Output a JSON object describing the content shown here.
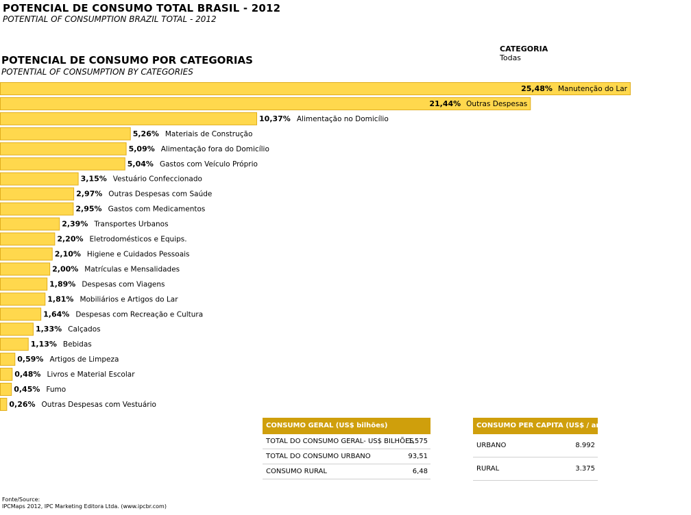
{
  "header": {
    "title": "POTENCIAL DE CONSUMO TOTAL BRASIL - 2012",
    "subtitle": "POTENTIAL OF CONSUMPTION BRAZIL TOTAL - 2012"
  },
  "filter": {
    "label": "CATEGORIA",
    "value": "Todas"
  },
  "chart_data": {
    "type": "bar",
    "orientation": "horizontal",
    "title": "POTENCIAL DE CONSUMO POR CATEGORIAS",
    "subtitle": "POTENTIAL OF CONSUMPTION BY CATEGORIES",
    "bar_color": "#ffd84d",
    "bar_border_color": "#e0ad1c",
    "max_value": 25.48,
    "categories": [
      "Manutenção do Lar",
      "Outras Despesas",
      "Alimentação no Domicílio",
      "Materiais de Construção",
      "Alimentação fora do Domicílio",
      "Gastos com Veículo Próprio",
      "Vestuário Confeccionado",
      "Outras Despesas com Saúde",
      "Gastos com Medicamentos",
      "Transportes Urbanos",
      "Eletrodomésticos e Equips.",
      "Higiene e Cuidados Pessoais",
      "Matrículas e Mensalidades",
      "Despesas com Viagens",
      "Mobiliários e Artigos do Lar",
      "Despesas com Recreação e Cultura",
      "Calçados",
      "Bebidas",
      "Artigos de Limpeza",
      "Livros e Material Escolar",
      "Fumo",
      "Outras Despesas com Vestuário"
    ],
    "values": [
      25.48,
      21.44,
      10.37,
      5.26,
      5.09,
      5.04,
      3.15,
      2.97,
      2.95,
      2.39,
      2.2,
      2.1,
      2.0,
      1.89,
      1.81,
      1.64,
      1.33,
      1.13,
      0.59,
      0.48,
      0.45,
      0.26
    ],
    "value_labels": [
      "25,48%",
      "21,44%",
      "10,37%",
      "5,26%",
      "5,09%",
      "5,04%",
      "3,15%",
      "2,97%",
      "2,95%",
      "2,39%",
      "2,20%",
      "2,10%",
      "2,00%",
      "1,89%",
      "1,81%",
      "1,64%",
      "1,33%",
      "1,13%",
      "0,59%",
      "0,48%",
      "0,45%",
      "0,26%"
    ]
  },
  "consumo_geral": {
    "header": "CONSUMO GERAL  (US$ bilhões)",
    "header_color": "#cf9f0c",
    "rows": [
      {
        "label": "TOTAL DO CONSUMO GERAL- US$ BILHÕES",
        "value": "1,575"
      },
      {
        "label": "TOTAL DO CONSUMO URBANO",
        "value": "93,51"
      },
      {
        "label": "CONSUMO RURAL",
        "value": "6,48"
      }
    ]
  },
  "consumo_per_capita": {
    "header": "CONSUMO PER CAPITA   (US$ / ano)",
    "rows": [
      {
        "label": "URBANO",
        "value": "8.992"
      },
      {
        "label": "RURAL",
        "value": "3.375"
      }
    ]
  },
  "source": {
    "label": "Fonte/Source:",
    "text": "IPCMaps 2012, IPC Marketing Editora Ltda. (www.ipcbr.com)"
  }
}
